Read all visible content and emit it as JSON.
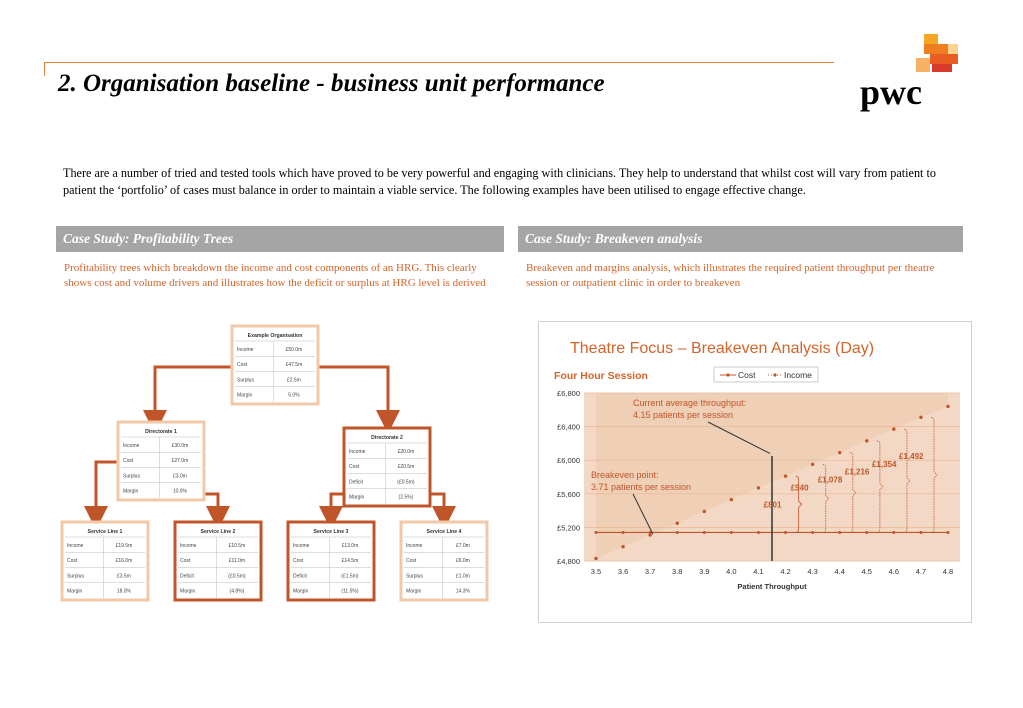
{
  "header": {
    "title": "2. Organisation baseline - business unit performance",
    "logo_text": "pwc"
  },
  "intro": "There are a number of tried and tested tools which have proved to be very powerful and engaging with clinicians. They help to understand that whilst cost will vary from patient to patient the ‘portfolio’ of cases must balance in order to maintain a viable service. The following examples have been utilised to engage effective change.",
  "left_case": {
    "heading": "Case Study: Profitability Trees",
    "description": "Profitability trees which breakdown the income and cost components of an HRG. This clearly shows cost and volume drivers and illustrates how the deficit or surplus at HRG level is derived"
  },
  "right_case": {
    "heading": "Case Study: Breakeven analysis",
    "description": "Breakeven and margins analysis, which illustrates the required patient throughput per theatre session or outpatient clinic in order to breakeven"
  },
  "tree": {
    "root": {
      "title": "Example Organisation",
      "rows": [
        [
          "Income",
          "£50.0m"
        ],
        [
          "Cost",
          "£47.5m"
        ],
        [
          "Surplus",
          "£2.5m"
        ],
        [
          "Margin",
          "5.0%"
        ]
      ]
    },
    "dir1": {
      "title": "Directorate 1",
      "rows": [
        [
          "Income",
          "£30.0m"
        ],
        [
          "Cost",
          "£27.0m"
        ],
        [
          "Surplus",
          "£3.0m"
        ],
        [
          "Margin",
          "10.0%"
        ]
      ]
    },
    "dir2": {
      "title": "Directorate 2",
      "rows": [
        [
          "Income",
          "£20.0m"
        ],
        [
          "Cost",
          "£20.5m"
        ],
        [
          "Deficit",
          "(£0.5m)"
        ],
        [
          "Margin",
          "(2.5%)"
        ]
      ]
    },
    "sl1": {
      "title": "Service Line 1",
      "rows": [
        [
          "Income",
          "£19.5m"
        ],
        [
          "Cost",
          "£16.0m"
        ],
        [
          "Surplus",
          "£3.5m"
        ],
        [
          "Margin",
          "18.0%"
        ]
      ]
    },
    "sl2": {
      "title": "Service Line 2",
      "rows": [
        [
          "Income",
          "£10.5m"
        ],
        [
          "Cost",
          "£11.0m"
        ],
        [
          "Deficit",
          "(£0.5m)"
        ],
        [
          "Margin",
          "(4.8%)"
        ]
      ]
    },
    "sl3": {
      "title": "Service Line 3",
      "rows": [
        [
          "Income",
          "£13.0m"
        ],
        [
          "Cost",
          "£14.5m"
        ],
        [
          "Deficit",
          "(£1.5m)"
        ],
        [
          "Margin",
          "(11.5%)"
        ]
      ]
    },
    "sl4": {
      "title": "Service Line 4",
      "rows": [
        [
          "Income",
          "£7.0m"
        ],
        [
          "Cost",
          "£6.0m"
        ],
        [
          "Surplus",
          "£1.0m"
        ],
        [
          "Margin",
          "14.3%"
        ]
      ]
    }
  },
  "chart_data": {
    "type": "line",
    "title": "Theatre Focus – Breakeven Analysis (Day)",
    "subtitle": "Four Hour Session",
    "xlabel": "Patient Throughput",
    "ylabel": "",
    "x": [
      3.5,
      3.6,
      3.7,
      3.8,
      3.9,
      4.0,
      4.1,
      4.2,
      4.3,
      4.4,
      4.5,
      4.6,
      4.7,
      4.8
    ],
    "x_ticks": [
      "3.5",
      "3.6",
      "3.7",
      "3.8",
      "3.9",
      "4.0",
      "4.1",
      "4.2",
      "4.3",
      "4.4",
      "4.5",
      "4.6",
      "4.7",
      "4.8"
    ],
    "y_ticks": [
      "£4,800",
      "£5,200",
      "£5,600",
      "£6,000",
      "£6,400",
      "£6,800"
    ],
    "ylim": [
      4800,
      6800
    ],
    "grid": true,
    "legend_position": "top",
    "series": [
      {
        "name": "Cost",
        "color": "#c0552a",
        "values": [
          5140,
          5140,
          5140,
          5140,
          5140,
          5140,
          5140,
          5140,
          5140,
          5140,
          5140,
          5140,
          5140,
          5140
        ]
      },
      {
        "name": "Income",
        "color": "#c0552a",
        "values": [
          4830,
          4970,
          5110,
          5250,
          5390,
          5530,
          5670,
          5810,
          5950,
          6090,
          6230,
          6370,
          6510,
          6640
        ]
      }
    ],
    "annotations": {
      "current": "Current average throughput:\n4.15 patients per session",
      "breakeven": "Breakeven point:\n3.71 patients per session",
      "margins": [
        "£801",
        "£940",
        "£1,078",
        "£1,216",
        "£1,354",
        "£1,492"
      ]
    }
  }
}
